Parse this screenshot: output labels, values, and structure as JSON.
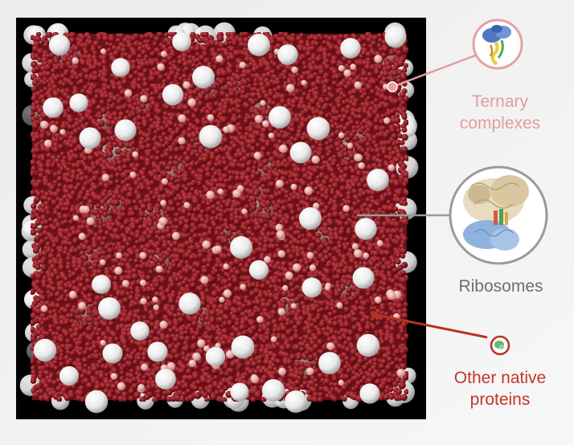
{
  "colors": {
    "frame": "#000000",
    "background": "#f2f2f2",
    "cytoplasm_dark": "#6e1118",
    "cytoplasm_mid": "#962730",
    "native_protein": "#a8242c",
    "ternary_complex": "#e6a8a8",
    "ribosome": "#f4f4f4",
    "ternary_accent": "#e8a0a4",
    "ribosome_accent": "#9a9a9a",
    "native_accent": "#b83222",
    "label_ternary": "#e39c9f",
    "label_ribosome": "#6e6e6e",
    "label_native": "#c0382a"
  },
  "callouts": [
    {
      "id": "ternary",
      "label_lines": [
        "Ternary",
        "complexes"
      ],
      "icon": "ternary-complex-structure-icon"
    },
    {
      "id": "ribosomes",
      "label_lines": [
        "Ribosomes"
      ],
      "icon": "ribosome-structure-icon"
    },
    {
      "id": "native",
      "label_lines": [
        "Other native",
        "proteins"
      ],
      "icon": "native-protein-structure-icon"
    }
  ]
}
